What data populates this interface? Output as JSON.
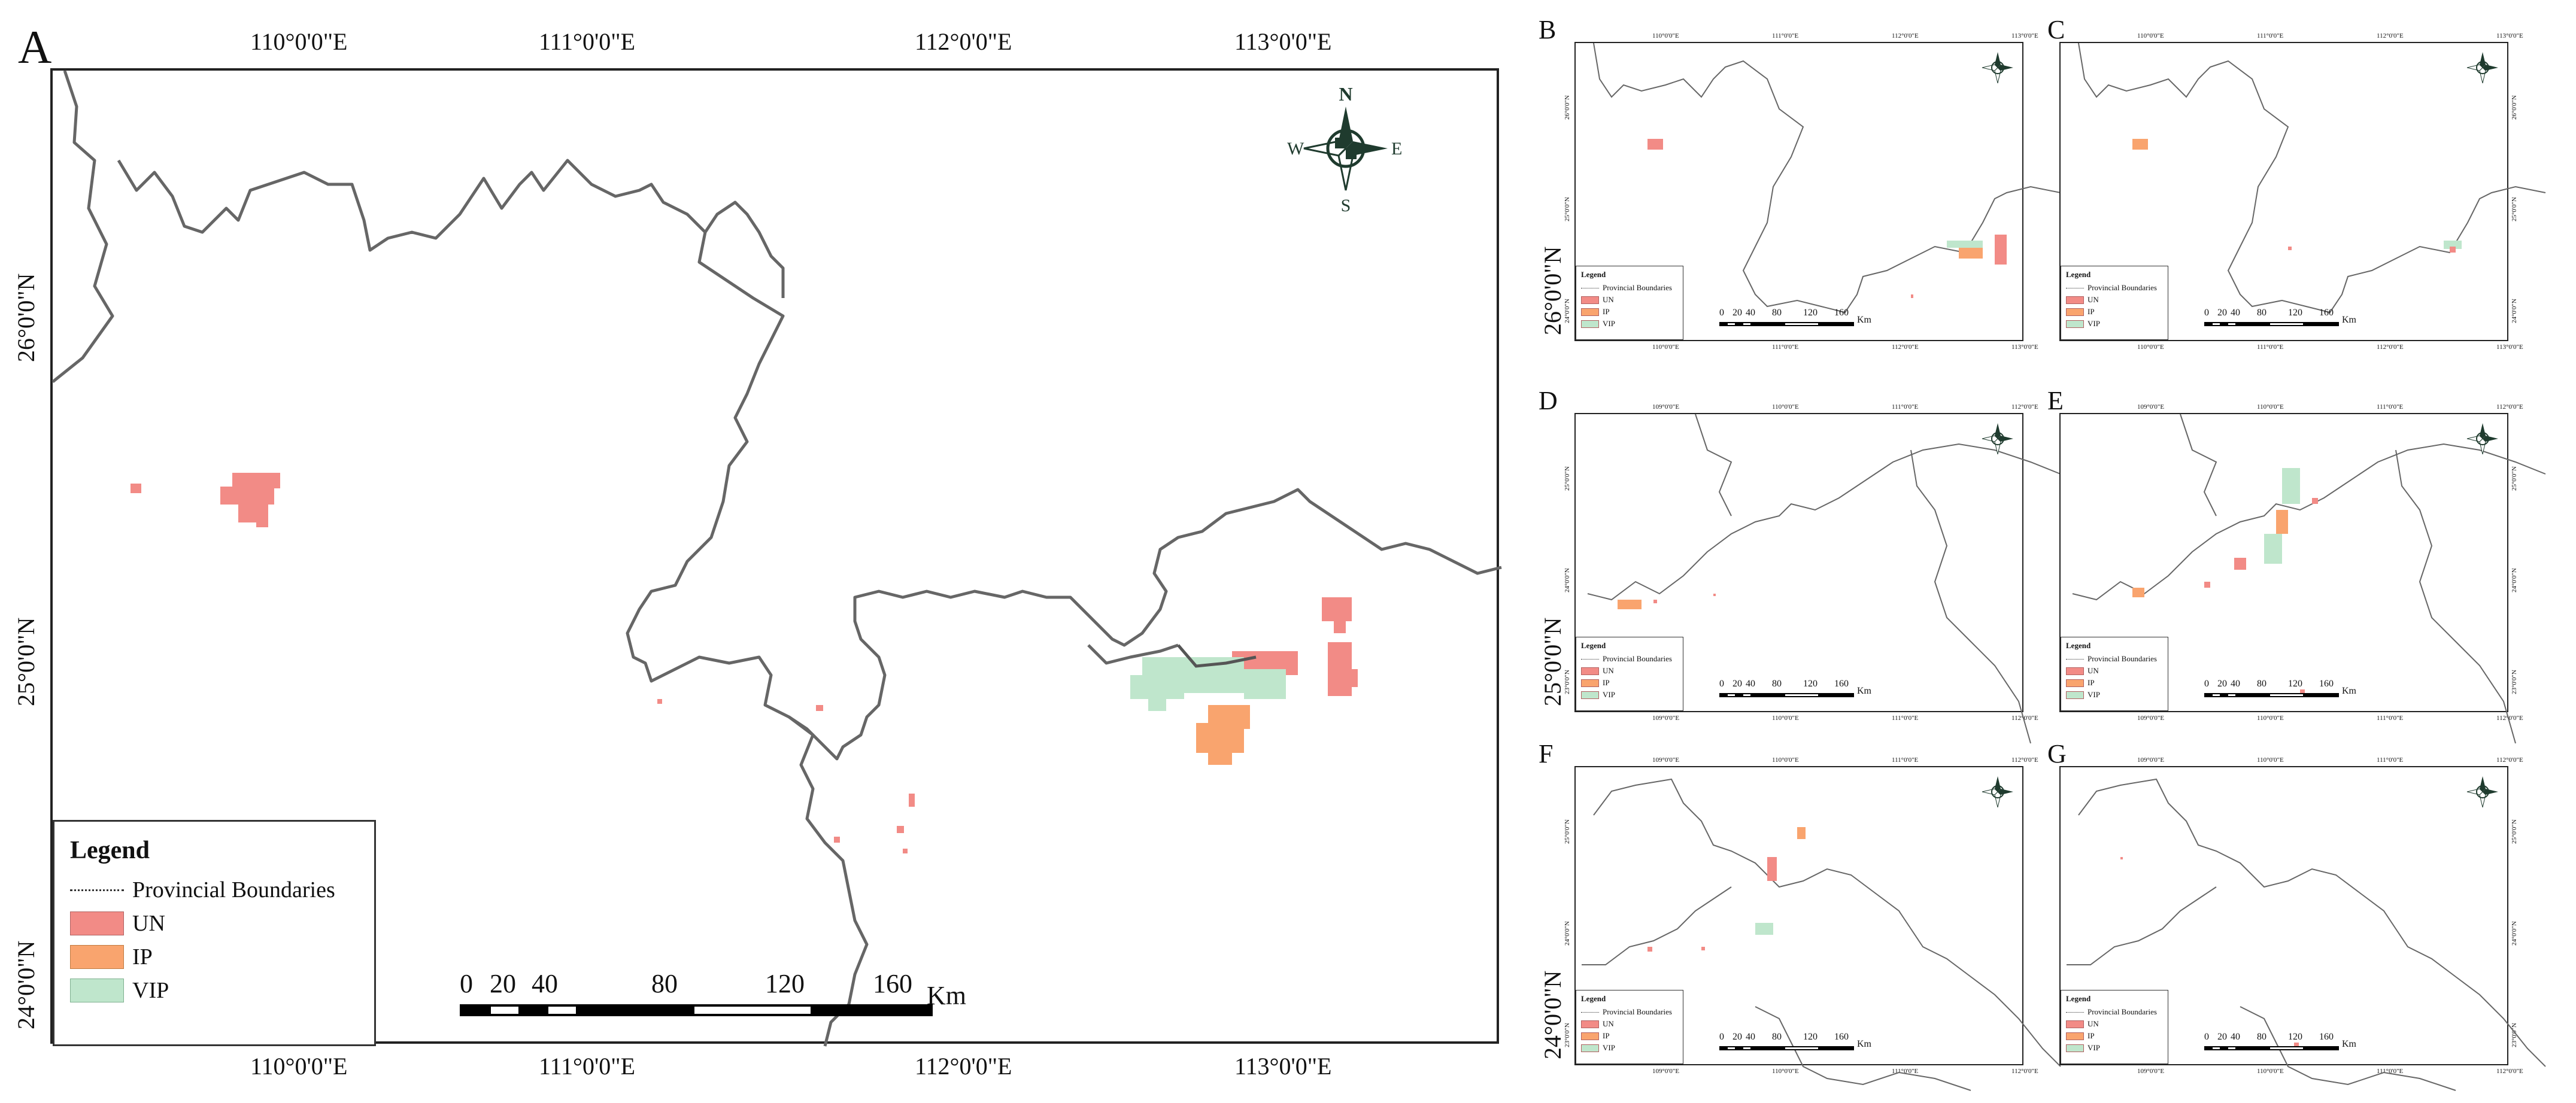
{
  "colors": {
    "UN": "#f28b86",
    "IP": "#f9a46e",
    "VIP": "#bfe6cc",
    "boundary": "#666666",
    "compass": "#1f3b2e"
  },
  "panels": {
    "A": {
      "letter": "A",
      "top_ticks": [
        "110°0'0\"E",
        "111°0'0\"E",
        "112°0'0\"E",
        "113°0'0\"E"
      ],
      "bottom_ticks": [
        "110°0'0\"E",
        "111°0'0\"E",
        "112°0'0\"E",
        "113°0'0\"E"
      ],
      "left_ticks": [
        "26°0'0\"N",
        "25°0'0\"N",
        "24°0'0\"N"
      ]
    },
    "B": {
      "letter": "B",
      "top_ticks": [
        "110°0'0\"E",
        "111°0'0\"E",
        "112°0'0\"E",
        "113°0'0\"E"
      ],
      "bottom_ticks": [
        "110°0'0\"E",
        "111°0'0\"E",
        "112°0'0\"E",
        "113°0'0\"E"
      ],
      "left_ticks": [
        "26°0'0\"N",
        "25°0'0\"N",
        "24°0'0\"N"
      ],
      "left_big": "26°0'0\"N"
    },
    "C": {
      "letter": "C",
      "top_ticks": [
        "110°0'0\"E",
        "111°0'0\"E",
        "112°0'0\"E",
        "113°0'0\"E"
      ],
      "bottom_ticks": [
        "110°0'0\"E",
        "111°0'0\"E",
        "112°0'0\"E",
        "113°0'0\"E"
      ],
      "right_ticks": [
        "26°0'0\"N",
        "25°0'0\"N",
        "24°0'0\"N"
      ]
    },
    "D": {
      "letter": "D",
      "top_ticks": [
        "109°0'0\"E",
        "110°0'0\"E",
        "111°0'0\"E",
        "112°0'0\"E"
      ],
      "bottom_ticks": [
        "109°0'0\"E",
        "110°0'0\"E",
        "111°0'0\"E",
        "112°0'0\"E"
      ],
      "left_ticks": [
        "25°0'0\"N",
        "24°0'0\"N",
        "23°0'0\"N"
      ],
      "left_big": "25°0'0\"N"
    },
    "E": {
      "letter": "E",
      "top_ticks": [
        "109°0'0\"E",
        "110°0'0\"E",
        "111°0'0\"E",
        "112°0'0\"E"
      ],
      "bottom_ticks": [
        "109°0'0\"E",
        "110°0'0\"E",
        "111°0'0\"E",
        "112°0'0\"E"
      ],
      "right_ticks": [
        "25°0'0\"N",
        "24°0'0\"N",
        "23°0'0\"N"
      ]
    },
    "F": {
      "letter": "F",
      "top_ticks": [
        "109°0'0\"E",
        "110°0'0\"E",
        "111°0'0\"E",
        "112°0'0\"E"
      ],
      "bottom_ticks": [
        "109°0'0\"E",
        "110°0'0\"E",
        "111°0'0\"E",
        "112°0'0\"E"
      ],
      "left_ticks": [
        "25°0'0\"N",
        "24°0'0\"N",
        "23°0'0\"N"
      ],
      "left_big": "24°0'0\"N"
    },
    "G": {
      "letter": "G",
      "top_ticks": [
        "109°0'0\"E",
        "110°0'0\"E",
        "111°0'0\"E",
        "112°0'0\"E"
      ],
      "bottom_ticks": [
        "109°0'0\"E",
        "110°0'0\"E",
        "111°0'0\"E",
        "112°0'0\"E"
      ],
      "right_ticks": [
        "25°0'0\"N",
        "24°0'0\"N",
        "23°0'0\"N"
      ]
    }
  },
  "compass": {
    "N": "N",
    "S": "S",
    "E": "E",
    "W": "W"
  },
  "legend": {
    "title": "Legend",
    "boundary_label": "Provincial Boundaries",
    "un_label": "UN",
    "ip_label": "IP",
    "vip_label": "VIP"
  },
  "scale_bar": {
    "labels": [
      "0",
      "20",
      "40",
      "80",
      "120",
      "160"
    ],
    "unit": "Km"
  }
}
